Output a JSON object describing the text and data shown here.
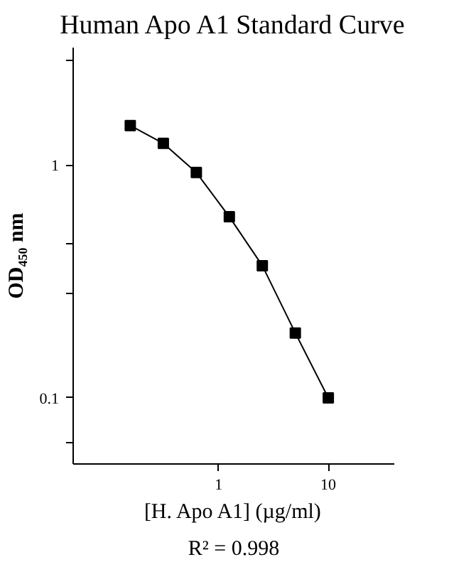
{
  "chart_data": {
    "type": "line",
    "title": "Human Apo A1 Standard Curve",
    "xlabel": "[H. Apo A1] (µg/ml)",
    "ylabel": "OD₄₅₀ nm",
    "annotations": [
      "R² = 0.998"
    ],
    "x": [
      0.156,
      0.3125,
      0.625,
      1.25,
      2.5,
      5,
      10
    ],
    "series": [
      {
        "color": "#000000",
        "values": [
          1.48,
          1.24,
          0.93,
          0.6,
          0.37,
          0.19,
          0.1
        ]
      }
    ],
    "log": "xy",
    "xlim": [
      0.047,
      40
    ],
    "ylim": [
      0.052,
      3.2
    ],
    "xticks": [
      1,
      10
    ],
    "yticks": [
      {
        "value": 0.064,
        "label": null
      },
      0.1,
      {
        "value": 0.28,
        "label": null
      },
      {
        "value": 0.46,
        "label": null
      },
      1,
      {
        "value": 2.8,
        "label": null
      }
    ],
    "grid": false,
    "marker": "square",
    "line_style": "solid"
  }
}
